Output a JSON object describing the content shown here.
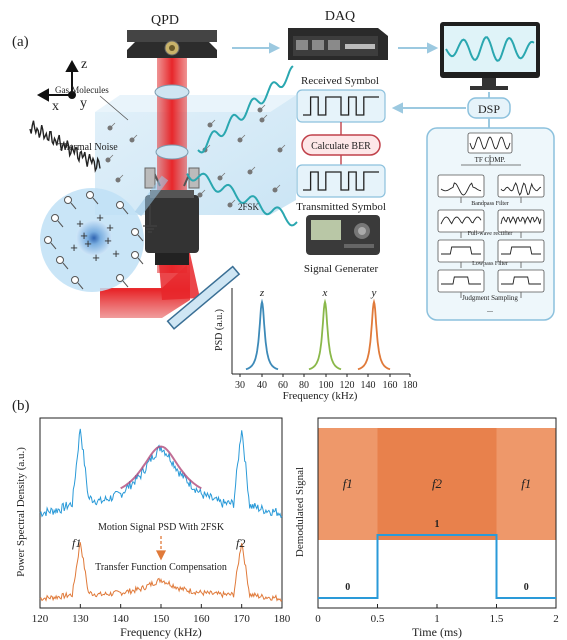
{
  "panel_a": {
    "label": "(a)",
    "qpd": "QPD",
    "daq": "DAQ",
    "dsp": "DSP",
    "axis_z": "z",
    "axis_x": "x",
    "axis_y": "y",
    "gas_molecules": "Gas Molecules",
    "thermal_noise": "Thermal Noise",
    "fsk": "2FSK",
    "received_symbol": "Received Symbol",
    "calculate_ber": "Calculate BER",
    "transmitted_symbol": "Transmitted Symbol",
    "signal_generator": "Signal Generater",
    "dsp_steps": {
      "tf_comp": "TF COMP.",
      "bandpass": "Bandpass Filter",
      "fullwave": "Full-wave rectifier",
      "lowpass": "Lowpass Filter",
      "judgment": "Judgment Sampling",
      "ellipsis": "..."
    },
    "inset": {
      "ylabel": "PSD (a.u.)",
      "xlabel": "Frequency (kHz)",
      "ticks": [
        "30",
        "40",
        "60",
        "80",
        "100",
        "120",
        "140",
        "160",
        "180"
      ],
      "peak_labels": [
        "z",
        "x",
        "y"
      ],
      "peak_colors": [
        "#3d8ab8",
        "#8ab84a",
        "#e07a3a"
      ]
    }
  },
  "panel_b": {
    "label": "(b)"
  },
  "chart_data": [
    {
      "type": "line",
      "xlabel": "Frequency (kHz)",
      "ylabel": "Power Spectral Density (a.u.)",
      "xlim": [
        120,
        180
      ],
      "x_ticks": [
        "120",
        "130",
        "140",
        "150",
        "160",
        "170",
        "180"
      ],
      "annotations": [
        "Motion Signal PSD With 2FSK",
        "Transfer Function Compensation",
        "f1",
        "f2"
      ],
      "series": [
        {
          "color": "#2a9ad8",
          "x": [
            120,
            125,
            128,
            130,
            132,
            135,
            140,
            145,
            148,
            150,
            152,
            155,
            160,
            165,
            168,
            170,
            172,
            175,
            180
          ],
          "y": [
            0.5,
            0.52,
            0.55,
            0.95,
            0.58,
            0.56,
            0.6,
            0.7,
            0.8,
            0.85,
            0.8,
            0.7,
            0.6,
            0.55,
            0.55,
            0.95,
            0.54,
            0.52,
            0.5
          ]
        },
        {
          "color": "#e07a3a",
          "x": [
            120,
            125,
            128,
            130,
            132,
            135,
            140,
            145,
            148,
            150,
            152,
            155,
            160,
            165,
            168,
            170,
            172,
            175,
            180
          ],
          "y": [
            0.05,
            0.06,
            0.07,
            0.35,
            0.08,
            0.07,
            0.08,
            0.1,
            0.13,
            0.15,
            0.13,
            0.1,
            0.08,
            0.07,
            0.07,
            0.35,
            0.07,
            0.06,
            0.05
          ]
        }
      ]
    },
    {
      "type": "line",
      "xlabel": "Time (ms)",
      "ylabel": "Demodulated Signal",
      "xlim": [
        0,
        2
      ],
      "x_ticks": [
        "0",
        "0.5",
        "1",
        "1.5",
        "2"
      ],
      "bands": [
        {
          "label": "f1",
          "from": 0,
          "to": 0.5
        },
        {
          "label": "f2",
          "from": 0.5,
          "to": 1.5
        },
        {
          "label": "f1",
          "from": 1.5,
          "to": 2
        }
      ],
      "bits": [
        "0",
        "1",
        "0"
      ],
      "series": [
        {
          "color": "#2a9ad8",
          "x": [
            0,
            0.5,
            0.5,
            1.5,
            1.5,
            2
          ],
          "y": [
            0,
            0,
            1,
            1,
            0,
            0
          ]
        }
      ]
    }
  ]
}
